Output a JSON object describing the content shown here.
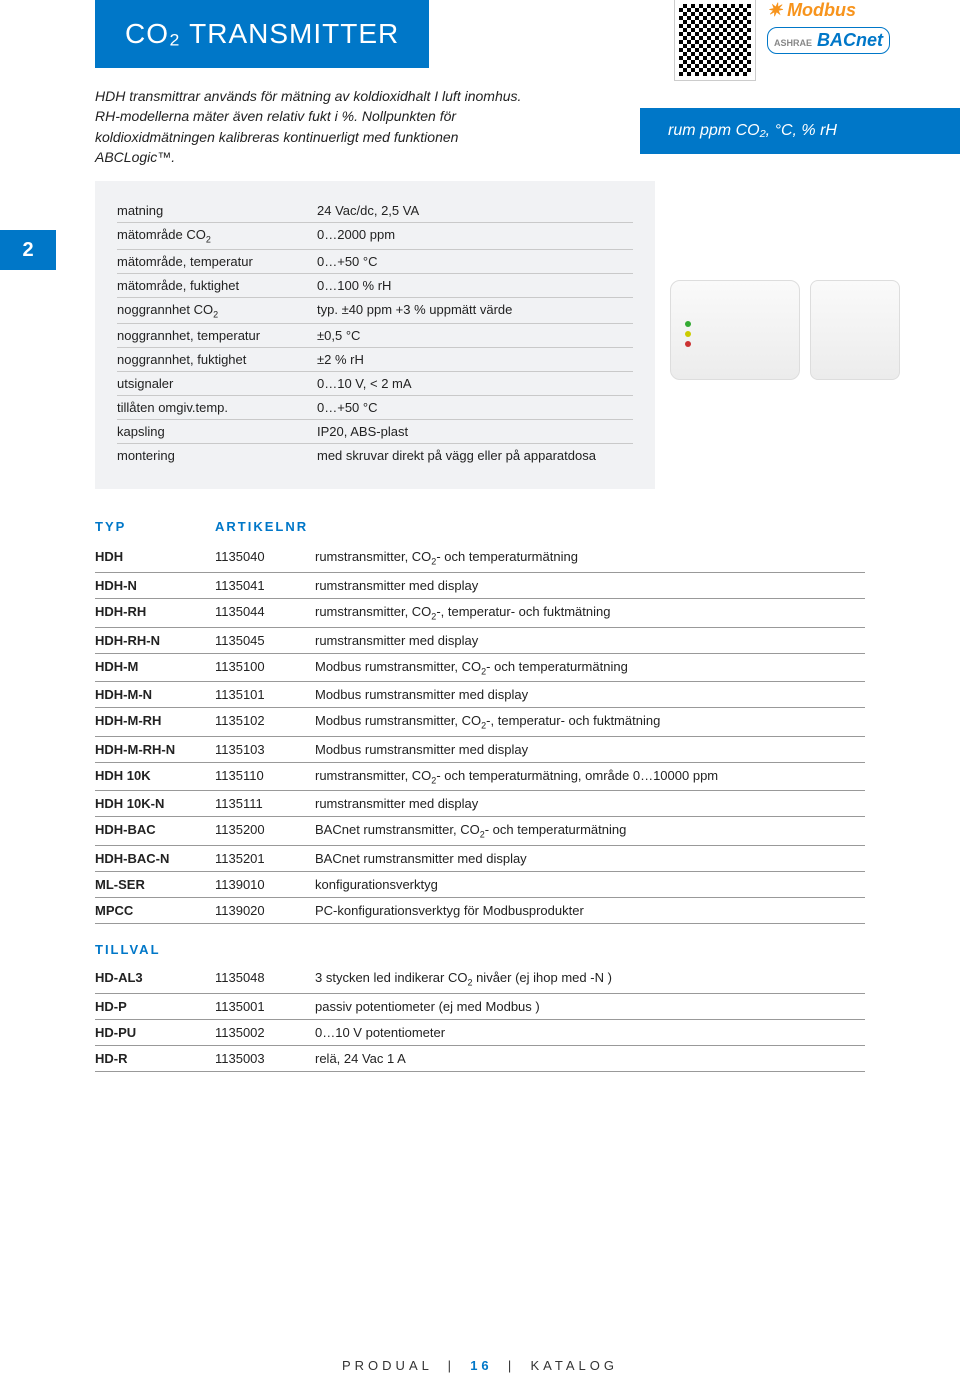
{
  "header": {
    "title": "CO₂ TRANSMITTER"
  },
  "brands": {
    "modbus": "Modbus",
    "bacnet_prefix": "ASHRAE",
    "bacnet": "BACnet"
  },
  "intro": "HDH transmittrar används för mätning av koldioxidhalt I luft inomhus. RH-modellerna mäter även relativ fukt i %. Nollpunkten för koldioxidmätningen kalibreras kontinuerligt med funktionen ABCLogic™.",
  "side_tag": "rum ppm CO₂, °C, % rH",
  "page_tab": "2",
  "specs": [
    {
      "label": "matning",
      "value": "24 Vac/dc, 2,5 VA"
    },
    {
      "label": "mätområde CO₂",
      "value": "0…2000 ppm"
    },
    {
      "label": "mätområde, temperatur",
      "value": "0…+50 °C"
    },
    {
      "label": "mätområde, fuktighet",
      "value": "0…100 % rH"
    },
    {
      "label": "noggrannhet CO₂",
      "value": "typ. ±40 ppm +3 % uppmätt värde"
    },
    {
      "label": "noggrannhet, temperatur",
      "value": "±0,5 °C"
    },
    {
      "label": "noggrannhet, fuktighet",
      "value": "±2 % rH"
    },
    {
      "label": "utsignaler",
      "value": "0…10 V, < 2 mA"
    },
    {
      "label": "tillåten omgiv.temp.",
      "value": "0…+50 °C"
    },
    {
      "label": "kapsling",
      "value": "IP20, ABS-plast"
    },
    {
      "label": "montering",
      "value": "med skruvar direkt på vägg eller på apparatdosa"
    }
  ],
  "table_headers": {
    "typ": "TYP",
    "art": "ARTIKELNR"
  },
  "products": [
    {
      "typ": "HDH",
      "art": "1135040",
      "desc": "rumstransmitter, CO₂- och temperaturmätning"
    },
    {
      "typ": "HDH-N",
      "art": "1135041",
      "desc": "rumstransmitter med display"
    },
    {
      "typ": "HDH-RH",
      "art": "1135044",
      "desc": "rumstransmitter, CO₂-, temperatur- och fuktmätning"
    },
    {
      "typ": "HDH-RH-N",
      "art": "1135045",
      "desc": "rumstransmitter med display"
    },
    {
      "typ": "HDH-M",
      "art": "1135100",
      "desc": "Modbus rumstransmitter, CO₂- och temperaturmätning"
    },
    {
      "typ": "HDH-M-N",
      "art": "1135101",
      "desc": "Modbus rumstransmitter med display"
    },
    {
      "typ": "HDH-M-RH",
      "art": "1135102",
      "desc": "Modbus rumstransmitter, CO₂-, temperatur- och fuktmätning"
    },
    {
      "typ": "HDH-M-RH-N",
      "art": "1135103",
      "desc": "Modbus rumstransmitter med display"
    },
    {
      "typ": "HDH 10K",
      "art": "1135110",
      "desc": "rumstransmitter, CO₂- och temperaturmätning, område 0…10000 ppm"
    },
    {
      "typ": "HDH 10K-N",
      "art": "1135111",
      "desc": "rumstransmitter med display"
    },
    {
      "typ": "HDH-BAC",
      "art": "1135200",
      "desc": "BACnet rumstransmitter, CO₂- och temperaturmätning"
    },
    {
      "typ": "HDH-BAC-N",
      "art": "1135201",
      "desc": "BACnet rumstransmitter med display"
    },
    {
      "typ": "ML-SER",
      "art": "1139010",
      "desc": "konfigurationsverktyg"
    },
    {
      "typ": "MPCC",
      "art": "1139020",
      "desc": "PC-konfigurationsverktyg för Modbusprodukter"
    }
  ],
  "tillval_label": "TILLVAL",
  "tillval": [
    {
      "typ": "HD-AL3",
      "art": "1135048",
      "desc": "3 stycken led indikerar CO₂ nivåer (ej ihop med -N )"
    },
    {
      "typ": "HD-P",
      "art": "1135001",
      "desc": "passiv potentiometer (ej med Modbus )"
    },
    {
      "typ": "HD-PU",
      "art": "1135002",
      "desc": "0…10 V potentiometer"
    },
    {
      "typ": "HD-R",
      "art": "1135003",
      "desc": "relä, 24 Vac 1 A"
    }
  ],
  "footer": {
    "left": "PRODUAL",
    "page": "16",
    "right": "KATALOG"
  },
  "colors": {
    "brand_blue": "#0077c8",
    "panel_gray": "#f1f2f4",
    "text": "#222222",
    "rule": "#999999"
  }
}
